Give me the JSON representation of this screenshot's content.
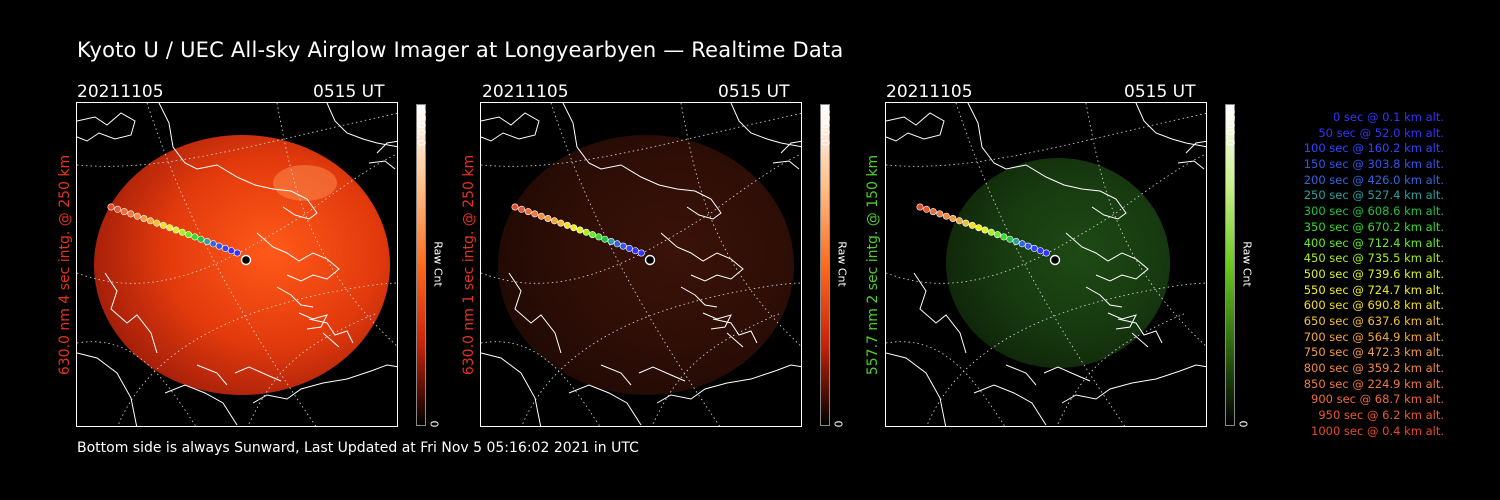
{
  "title": "Kyoto U / UEC All-sky Airglow Imager at Longyearbyen — Realtime Data",
  "footer": "Bottom side is always Sunward, Last Updated at Fri Nov  5 05:16:02 2021 in UTC",
  "panels": [
    {
      "date": "20211105",
      "time": "0515 UT",
      "side_label": "630.0 nm 4 sec intg. @ 250 km",
      "label_color": "#e8331a",
      "cbar_max": "6500.0",
      "cbar_min": "0",
      "cbar_unit": "Raw Cnt",
      "colormap": [
        "#ffffff",
        "#ffc08a",
        "#ff6a1c",
        "#c8220a",
        "#000000"
      ],
      "glow": "bright-red"
    },
    {
      "date": "20211105",
      "time": "0515 UT",
      "side_label": "630.0 nm 1 sec intg. @ 250 km",
      "label_color": "#e8331a",
      "cbar_max": "6500.0",
      "cbar_min": "0",
      "cbar_unit": "Raw Cnt",
      "colormap": [
        "#ffffff",
        "#ffc08a",
        "#ff6a1c",
        "#c8220a",
        "#000000"
      ],
      "glow": "dim-red"
    },
    {
      "date": "20211105",
      "time": "0515 UT",
      "side_label": "557.7 nm 2 sec intg. @ 150 km",
      "label_color": "#4fcf2a",
      "cbar_max": "6500.0",
      "cbar_min": "0",
      "cbar_unit": "Raw Cnt",
      "colormap": [
        "#ffffff",
        "#c9f08a",
        "#6bc81e",
        "#2f6a10",
        "#000000"
      ],
      "glow": "dim-green"
    }
  ],
  "legend": [
    {
      "text": "0 sec @    0.1 km alt.",
      "color": "#3333ff"
    },
    {
      "text": "50 sec @   52.0 km alt.",
      "color": "#3333ff"
    },
    {
      "text": "100 sec @  160.2 km alt.",
      "color": "#3344ff"
    },
    {
      "text": "150 sec @  303.8 km alt.",
      "color": "#3355ee"
    },
    {
      "text": "200 sec @  426.0 km alt.",
      "color": "#3366dd"
    },
    {
      "text": "250 sec @  527.4 km alt.",
      "color": "#2aa0a0"
    },
    {
      "text": "300 sec @  608.6 km alt.",
      "color": "#22c040"
    },
    {
      "text": "350 sec @  670.2 km alt.",
      "color": "#33dd22"
    },
    {
      "text": "400 sec @  712.4 km alt.",
      "color": "#66ee22"
    },
    {
      "text": "450 sec @  735.5 km alt.",
      "color": "#aaf022"
    },
    {
      "text": "500 sec @  739.6 km alt.",
      "color": "#ddf022"
    },
    {
      "text": "550 sec @  724.7 km alt.",
      "color": "#eeee22"
    },
    {
      "text": "600 sec @  690.8 km alt.",
      "color": "#f5dd22"
    },
    {
      "text": "650 sec @  637.6 km alt.",
      "color": "#f5c030"
    },
    {
      "text": "700 sec @  564.9 km alt.",
      "color": "#f5a838"
    },
    {
      "text": "750 sec @  472.3 km alt.",
      "color": "#f59a40"
    },
    {
      "text": "800 sec @  359.2 km alt.",
      "color": "#f58a40"
    },
    {
      "text": "850 sec @  224.9 km alt.",
      "color": "#f07a40"
    },
    {
      "text": "900 sec @   68.7 km alt.",
      "color": "#ee6a38"
    },
    {
      "text": "950 sec @    6.2 km alt.",
      "color": "#ea5a30"
    },
    {
      "text": "1000 sec @    0.4 km alt.",
      "color": "#e84a28"
    }
  ]
}
